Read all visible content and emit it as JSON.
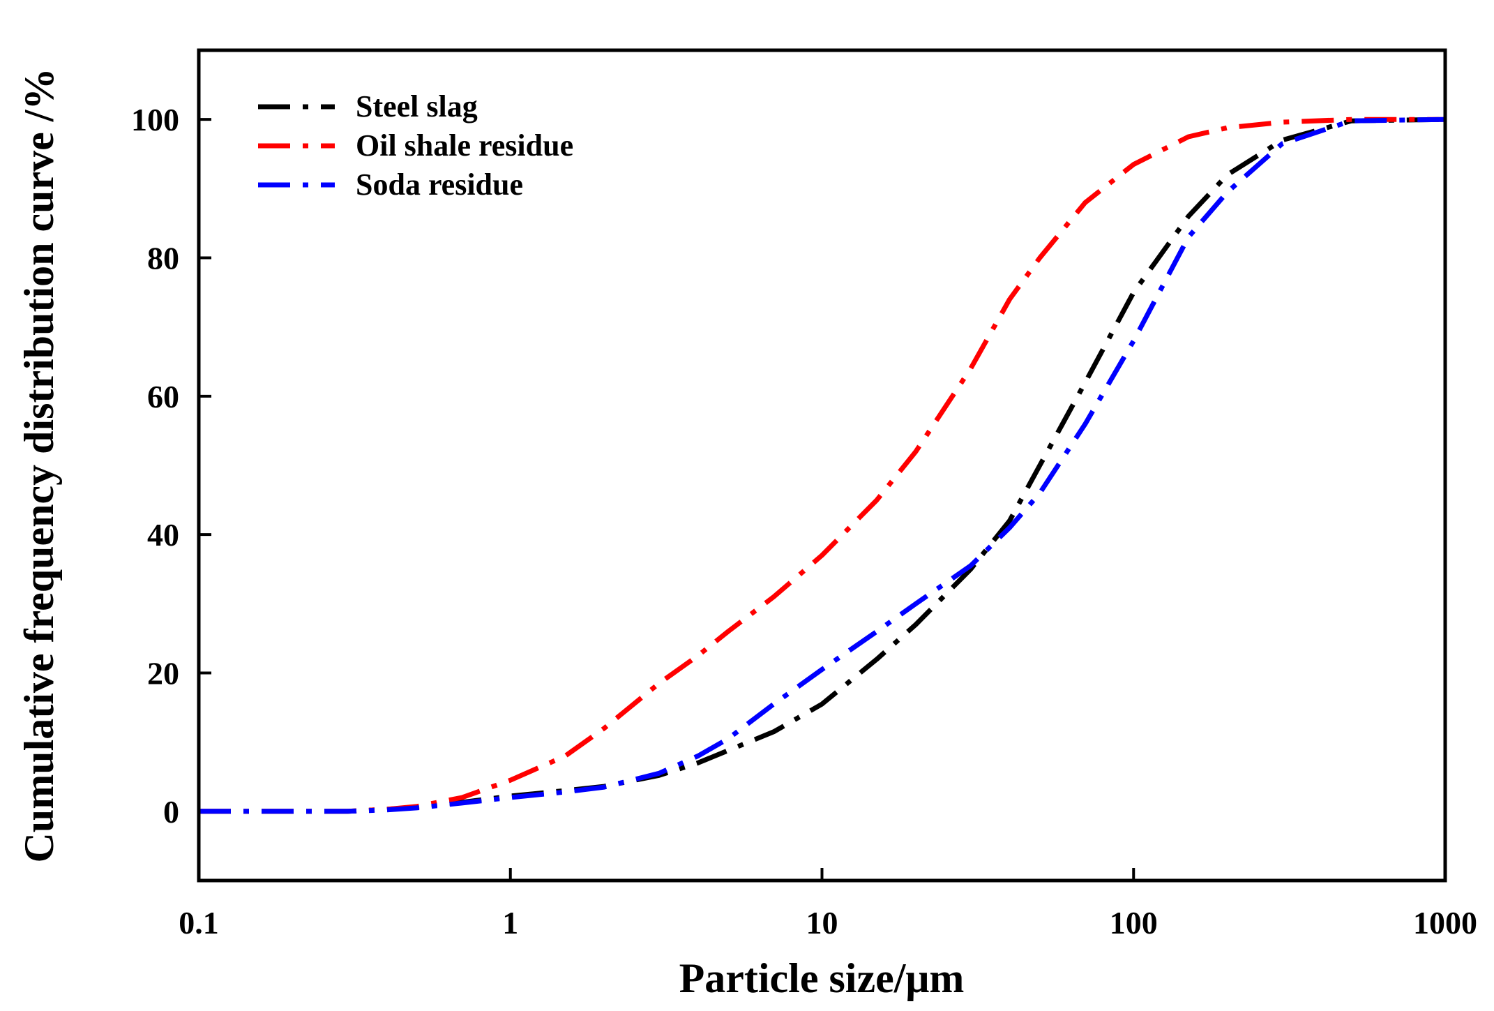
{
  "chart_data": {
    "type": "line",
    "title": "",
    "xlabel": "Particle size/μm",
    "ylabel": "Cumulative frequency distribution curve /%",
    "xscale": "log",
    "xlim": [
      0.1,
      1000
    ],
    "ylim": [
      -10,
      110
    ],
    "x_ticks": [
      0.1,
      1,
      10,
      100,
      1000
    ],
    "x_tick_labels": [
      "0.1",
      "1",
      "10",
      "100",
      "1000"
    ],
    "y_ticks": [
      0,
      20,
      40,
      60,
      80,
      100
    ],
    "y_tick_labels": [
      "0",
      "20",
      "40",
      "60",
      "80",
      "100"
    ],
    "grid": false,
    "legend_position": "top-left",
    "line_style": "dash-dot",
    "series": [
      {
        "name": "Steel slag",
        "color": "#000000",
        "x": [
          0.1,
          0.2,
          0.3,
          0.4,
          0.5,
          0.7,
          1,
          1.5,
          2,
          3,
          4,
          5,
          7,
          10,
          15,
          20,
          30,
          40,
          50,
          70,
          100,
          150,
          200,
          300,
          500,
          1000
        ],
        "y": [
          0,
          0,
          0,
          0.3,
          0.6,
          1.3,
          2.2,
          3,
          3.6,
          5.2,
          7,
          8.8,
          11.5,
          15.5,
          22,
          27,
          35,
          42,
          50,
          62,
          75,
          86,
          92,
          97,
          99.8,
          100
        ]
      },
      {
        "name": "Oil shale residue",
        "color": "#ff0000",
        "x": [
          0.1,
          0.2,
          0.3,
          0.4,
          0.5,
          0.7,
          1,
          1.5,
          2,
          3,
          4,
          5,
          7,
          10,
          15,
          20,
          30,
          40,
          50,
          70,
          100,
          150,
          200,
          300,
          500,
          1000
        ],
        "y": [
          0,
          0,
          0,
          0.3,
          0.7,
          2,
          4.5,
          8,
          12,
          18.5,
          22.5,
          26,
          31,
          37,
          45,
          52,
          64,
          74,
          80,
          88,
          93.5,
          97.5,
          98.8,
          99.6,
          100,
          100
        ]
      },
      {
        "name": "Soda residue",
        "color": "#0000ff",
        "x": [
          0.1,
          0.2,
          0.3,
          0.4,
          0.5,
          0.7,
          1,
          1.5,
          2,
          3,
          4,
          5,
          7,
          10,
          15,
          20,
          30,
          40,
          50,
          70,
          100,
          150,
          200,
          300,
          500,
          1000
        ],
        "y": [
          0,
          0,
          0,
          0.2,
          0.5,
          1.2,
          2,
          2.8,
          3.5,
          5.5,
          8,
          10.5,
          15.5,
          20.5,
          26,
          30,
          35.5,
          41,
          46,
          56,
          68,
          83,
          89.5,
          96.5,
          99.8,
          100
        ]
      }
    ]
  }
}
